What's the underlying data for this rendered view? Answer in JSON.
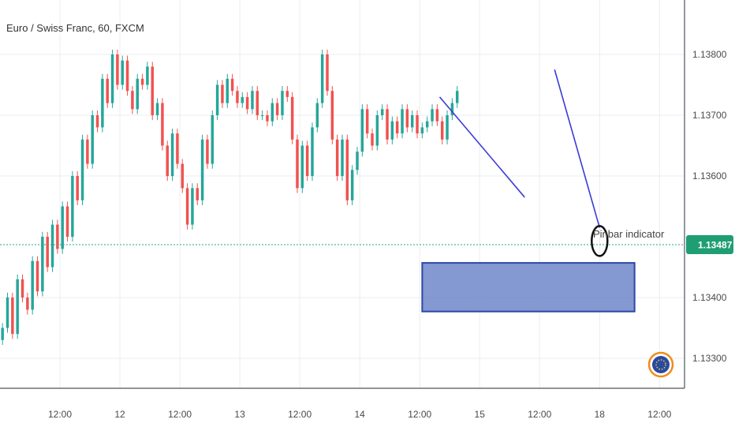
{
  "header": {
    "symbol_title": "Euro / Swiss Franc, 60, FXCM"
  },
  "colors": {
    "bull": "#26a69a",
    "bear": "#ef5350",
    "trendline": "#3b3bd6",
    "zone_fill": "#6f86c9",
    "zone_border": "#2d46a8",
    "price_tag_bg": "#1f9e73",
    "price_line": "#2aa77f",
    "grid": "#e9edf1",
    "axis_text": "#4a4a4a"
  },
  "annotations": {
    "pinbar_label": "Pinbar indicator"
  },
  "badge": {
    "icon": "tradingview-globe-icon"
  },
  "chart_data": {
    "type": "candlestick",
    "title": "Euro / Swiss Franc, 60, FXCM",
    "ylim": [
      1.1325,
      1.1387
    ],
    "x_tick_labels": [
      "12:00",
      "12",
      "12:00",
      "13",
      "12:00",
      "14",
      "12:00",
      "15",
      "12:00",
      "18",
      "12:00"
    ],
    "x_tick_positions_hours": [
      12,
      24,
      36,
      48,
      60,
      72,
      84,
      96,
      108,
      120,
      132
    ],
    "y_ticks": [
      1.138,
      1.137,
      1.136,
      1.134,
      1.133
    ],
    "y_tick_labels": [
      "1.13800",
      "1.13700",
      "1.13600",
      "1.13400",
      "1.13300"
    ],
    "current_price": 1.13487,
    "current_price_label": "1.13487",
    "grid": true,
    "series": [
      {
        "kind": "ohlc",
        "bar_hours": 1,
        "start_hour": 0,
        "open": [
          1.1333,
          1.1335,
          1.134,
          1.1334,
          1.1343,
          1.134,
          1.1338,
          1.1346,
          1.1341,
          1.135,
          1.1345,
          1.1352,
          1.1348,
          1.1355,
          1.135,
          1.136,
          1.1356,
          1.1366,
          1.1362,
          1.137,
          1.1368,
          1.1376,
          1.1372,
          1.138,
          1.1375,
          1.1379,
          1.1374,
          1.1371,
          1.1376,
          1.1375,
          1.1378,
          1.137,
          1.1372,
          1.1365,
          1.136,
          1.1367,
          1.1362,
          1.1358,
          1.1352,
          1.1358,
          1.1356,
          1.1366,
          1.1362,
          1.137,
          1.1375,
          1.1372,
          1.1376,
          1.1374,
          1.1372,
          1.1373,
          1.1371,
          1.1374,
          1.137,
          1.137,
          1.1369,
          1.1372,
          1.137,
          1.1374,
          1.1373,
          1.1366,
          1.1358,
          1.1365,
          1.136,
          1.1368,
          1.1372,
          1.138,
          1.1374,
          1.1366,
          1.136,
          1.1366,
          1.1356,
          1.1361,
          1.1364,
          1.1371,
          1.1367,
          1.1365,
          1.137,
          1.1371,
          1.1366,
          1.1369,
          1.1367,
          1.1371,
          1.1368,
          1.137,
          1.1367,
          1.1368,
          1.1369,
          1.1371,
          1.1369,
          1.1366,
          1.137,
          1.1372
        ],
        "close": [
          1.1335,
          1.134,
          1.1334,
          1.1343,
          1.134,
          1.1338,
          1.1346,
          1.1341,
          1.135,
          1.1345,
          1.1352,
          1.1348,
          1.1355,
          1.135,
          1.136,
          1.1356,
          1.1366,
          1.1362,
          1.137,
          1.1368,
          1.1376,
          1.1372,
          1.138,
          1.1375,
          1.1379,
          1.1374,
          1.1371,
          1.1376,
          1.1375,
          1.1378,
          1.137,
          1.1372,
          1.1365,
          1.136,
          1.1367,
          1.1362,
          1.1358,
          1.1352,
          1.1358,
          1.1356,
          1.1366,
          1.1362,
          1.137,
          1.1375,
          1.1372,
          1.1376,
          1.1374,
          1.1372,
          1.1373,
          1.1371,
          1.1374,
          1.137,
          1.137,
          1.1369,
          1.1372,
          1.137,
          1.1374,
          1.1373,
          1.1366,
          1.1358,
          1.1365,
          1.136,
          1.1368,
          1.1372,
          1.138,
          1.1374,
          1.1366,
          1.136,
          1.1366,
          1.1356,
          1.1361,
          1.1364,
          1.1371,
          1.1367,
          1.1365,
          1.137,
          1.1371,
          1.1366,
          1.1369,
          1.1367,
          1.1371,
          1.1368,
          1.137,
          1.1367,
          1.1368,
          1.1369,
          1.1371,
          1.1369,
          1.1366,
          1.137,
          1.1372,
          1.1374
        ]
      }
    ],
    "trendlines": [
      {
        "from": [
          88,
          1.1373
        ],
        "to": [
          105,
          1.13565
        ]
      },
      {
        "from": [
          111,
          1.13775
        ],
        "to": [
          120,
          1.13515
        ]
      }
    ],
    "zones": [
      {
        "hour_from": 84.5,
        "hour_to": 127,
        "price_from": 1.13377,
        "price_to": 1.13457
      }
    ],
    "markers": [
      {
        "hour": 120,
        "price": 1.13493,
        "shape": "circle"
      }
    ]
  }
}
